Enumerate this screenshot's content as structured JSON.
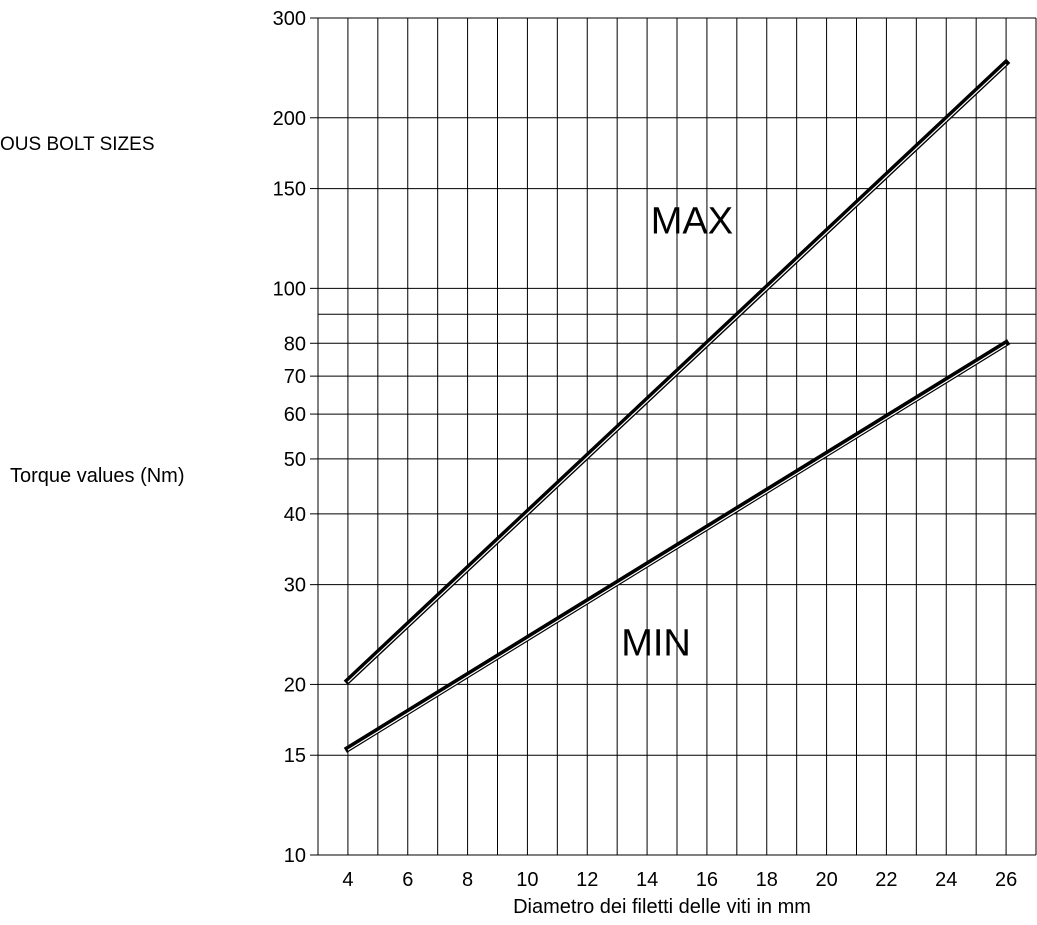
{
  "side_title": "OUS BOLT SIZES",
  "chart_data": {
    "type": "line",
    "title": "",
    "xlabel": "Diametro dei filetti delle viti in mm",
    "ylabel": "Torque values (Nm)",
    "y_scale": "log",
    "xlim": [
      3,
      27
    ],
    "ylim": [
      10,
      300
    ],
    "x_ticks": [
      4,
      6,
      8,
      10,
      12,
      14,
      16,
      18,
      20,
      22,
      24,
      26
    ],
    "x_tick_labels": [
      "4",
      "6",
      "8",
      "10",
      "12",
      "14",
      "16",
      "18",
      "20",
      "22",
      "24",
      "26"
    ],
    "y_ticks": [
      10,
      15,
      20,
      30,
      40,
      50,
      60,
      70,
      80,
      100,
      150,
      200,
      300
    ],
    "y_tick_labels": [
      "10",
      "15",
      "20",
      "30",
      "40",
      "50",
      "60",
      "70",
      "80",
      "100",
      "150",
      "200",
      "300"
    ],
    "y_grid_lines": [
      10,
      15,
      20,
      30,
      40,
      50,
      60,
      70,
      80,
      90,
      100,
      150,
      200,
      300
    ],
    "grid": true,
    "series": [
      {
        "name": "MAX",
        "x": [
          4,
          26
        ],
        "y": [
          20.3,
          250
        ]
      },
      {
        "name": "MIN",
        "x": [
          4,
          26
        ],
        "y": [
          15.4,
          80
        ]
      }
    ],
    "annotations": [
      {
        "text": "MAX",
        "x": 15.5,
        "y": 125
      },
      {
        "text": "MIN",
        "x": 14.3,
        "y": 22.5
      }
    ],
    "colors": {
      "line": "#000000",
      "grid": "#000000",
      "background": "#ffffff"
    }
  }
}
